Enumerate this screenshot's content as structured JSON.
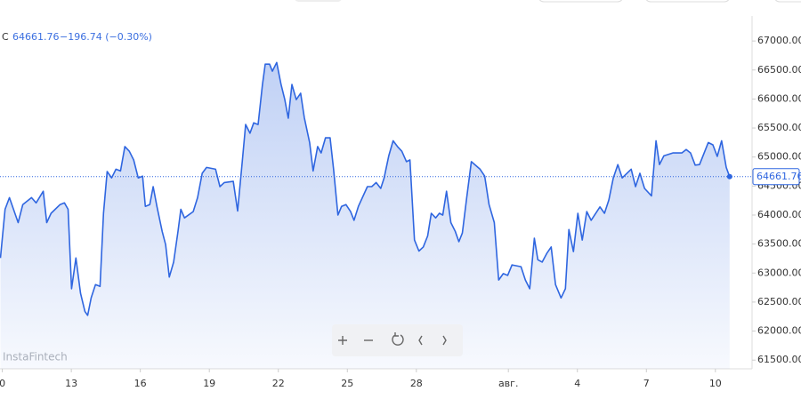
{
  "chart_data": {
    "type": "line",
    "symbol": "C",
    "change": "−196.74 (−0.30%)",
    "watermark": "InstaFintech",
    "last_price": 64661.76,
    "color": "#2f66e0",
    "grid": false,
    "xlim": [
      -0.1,
      32.4
    ],
    "ylim": [
      61350,
      67400
    ],
    "xticks": [
      {
        "value": 0,
        "label": "0"
      },
      {
        "value": 3,
        "label": "13"
      },
      {
        "value": 6,
        "label": "16"
      },
      {
        "value": 9,
        "label": "19"
      },
      {
        "value": 12,
        "label": "22"
      },
      {
        "value": 15,
        "label": "25"
      },
      {
        "value": 18,
        "label": "28"
      },
      {
        "value": 22,
        "label": "авг."
      },
      {
        "value": 25,
        "label": "4"
      },
      {
        "value": 28,
        "label": "7"
      },
      {
        "value": 31,
        "label": "10"
      }
    ],
    "yticks": [
      {
        "value": 61500,
        "label": "61500.00"
      },
      {
        "value": 62000,
        "label": "62000.00"
      },
      {
        "value": 62500,
        "label": "62500.00"
      },
      {
        "value": 63000,
        "label": "63000.00"
      },
      {
        "value": 63500,
        "label": "63500.00"
      },
      {
        "value": 64000,
        "label": "64000.00"
      },
      {
        "value": 64500,
        "label": "64500.00"
      },
      {
        "value": 65000,
        "label": "65000.00"
      },
      {
        "value": 65500,
        "label": "65500.00"
      },
      {
        "value": 66000,
        "label": "66000.00"
      },
      {
        "value": 66500,
        "label": "66500.00"
      },
      {
        "value": 67000,
        "label": "67000.00"
      }
    ],
    "series": [
      {
        "name": "C",
        "color": "#2f66e0",
        "x": [
          -0.08,
          0.12,
          0.31,
          0.69,
          0.89,
          1.27,
          1.47,
          1.78,
          1.93,
          2.12,
          2.51,
          2.7,
          2.86,
          3.01,
          3.2,
          3.4,
          3.59,
          3.71,
          3.86,
          4.05,
          4.25,
          4.4,
          4.56,
          4.75,
          4.94,
          5.14,
          5.33,
          5.52,
          5.71,
          5.91,
          6.1,
          6.22,
          6.41,
          6.56,
          6.72,
          6.95,
          7.1,
          7.26,
          7.45,
          7.64,
          7.76,
          7.92,
          8.3,
          8.49,
          8.69,
          8.88,
          9.27,
          9.46,
          9.65,
          10.04,
          10.23,
          10.42,
          10.58,
          10.77,
          10.93,
          11.12,
          11.31,
          11.43,
          11.62,
          11.74,
          11.93,
          12.12,
          12.28,
          12.43,
          12.59,
          12.78,
          12.97,
          13.13,
          13.36,
          13.51,
          13.71,
          13.86,
          14.05,
          14.25,
          14.4,
          14.59,
          14.75,
          14.94,
          15.14,
          15.29,
          15.48,
          15.87,
          16.06,
          16.25,
          16.45,
          16.6,
          16.8,
          16.99,
          17.18,
          17.37,
          17.57,
          17.72,
          17.92,
          18.11,
          18.3,
          18.49,
          18.65,
          18.84,
          19.0,
          19.15,
          19.31,
          19.5,
          19.69,
          19.85,
          20.0,
          20.19,
          20.39,
          20.77,
          20.97,
          21.16,
          21.39,
          21.58,
          21.78,
          21.97,
          22.16,
          22.55,
          22.74,
          22.93,
          23.13,
          23.28,
          23.47,
          23.67,
          23.86,
          24.05,
          24.29,
          24.48,
          24.63,
          24.83,
          25.02,
          25.21,
          25.41,
          25.6,
          25.98,
          26.18,
          26.37,
          26.56,
          26.76,
          26.95,
          27.34,
          27.53,
          27.72,
          27.92,
          28.22,
          28.42,
          28.57,
          28.76,
          29.15,
          29.54,
          29.73,
          29.92,
          30.12,
          30.31,
          30.69,
          30.89,
          31.08,
          31.27,
          31.47,
          31.62
        ],
        "values": [
          63260,
          64100,
          64300,
          63870,
          64180,
          64300,
          64210,
          64410,
          63870,
          64030,
          64180,
          64210,
          64100,
          62730,
          63260,
          62650,
          62340,
          62270,
          62570,
          62800,
          62770,
          64030,
          64750,
          64640,
          64790,
          64760,
          65180,
          65100,
          64950,
          64640,
          64670,
          64150,
          64180,
          64490,
          64150,
          63720,
          63490,
          62930,
          63190,
          63720,
          64100,
          63950,
          64060,
          64300,
          64720,
          64820,
          64790,
          64490,
          64560,
          64580,
          64070,
          64870,
          65560,
          65410,
          65590,
          65560,
          66250,
          66600,
          66600,
          66480,
          66630,
          66250,
          65990,
          65670,
          66250,
          65990,
          66100,
          65680,
          65250,
          64760,
          65180,
          65070,
          65330,
          65330,
          64790,
          64000,
          64150,
          64180,
          64060,
          63910,
          64150,
          64490,
          64490,
          64560,
          64460,
          64640,
          65020,
          65280,
          65180,
          65100,
          64920,
          64950,
          63570,
          63380,
          63450,
          63640,
          64030,
          63950,
          64030,
          64000,
          64410,
          63870,
          63720,
          63540,
          63690,
          64300,
          64920,
          64790,
          64670,
          64180,
          63870,
          62880,
          62990,
          62960,
          63140,
          63110,
          62880,
          62730,
          63600,
          63230,
          63190,
          63340,
          63450,
          62800,
          62570,
          62730,
          63750,
          63370,
          64030,
          63570,
          64060,
          63910,
          64140,
          64030,
          64260,
          64640,
          64870,
          64640,
          64790,
          64490,
          64720,
          64460,
          64330,
          65280,
          64870,
          65020,
          65070,
          65070,
          65130,
          65070,
          64860,
          64870,
          65250,
          65210,
          65010,
          65280,
          64820,
          64661.76
        ]
      }
    ]
  }
}
